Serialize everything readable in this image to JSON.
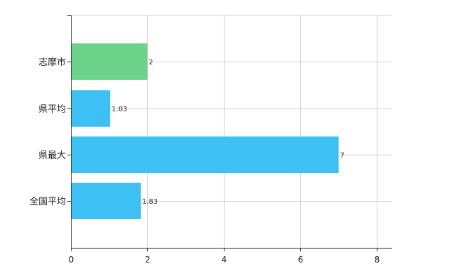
{
  "chart_data": {
    "type": "bar",
    "orientation": "horizontal",
    "categories": [
      "志摩市",
      "県平均",
      "県最大",
      "全国平均"
    ],
    "values": [
      2,
      1.03,
      7,
      1.83
    ],
    "data_labels": [
      "2",
      "1.03",
      "7",
      "1.83"
    ],
    "bar_colors": [
      "#6dd38a",
      "#3dc1f4",
      "#3dc1f4",
      "#3dc1f4"
    ],
    "xlim": [
      0,
      8.4
    ],
    "xticks": [
      0,
      2,
      4,
      6,
      8
    ],
    "xtick_labels": [
      "0",
      "2",
      "4",
      "6",
      "8"
    ],
    "grid": true,
    "legend": "none",
    "title": "",
    "xlabel": "",
    "ylabel": ""
  }
}
